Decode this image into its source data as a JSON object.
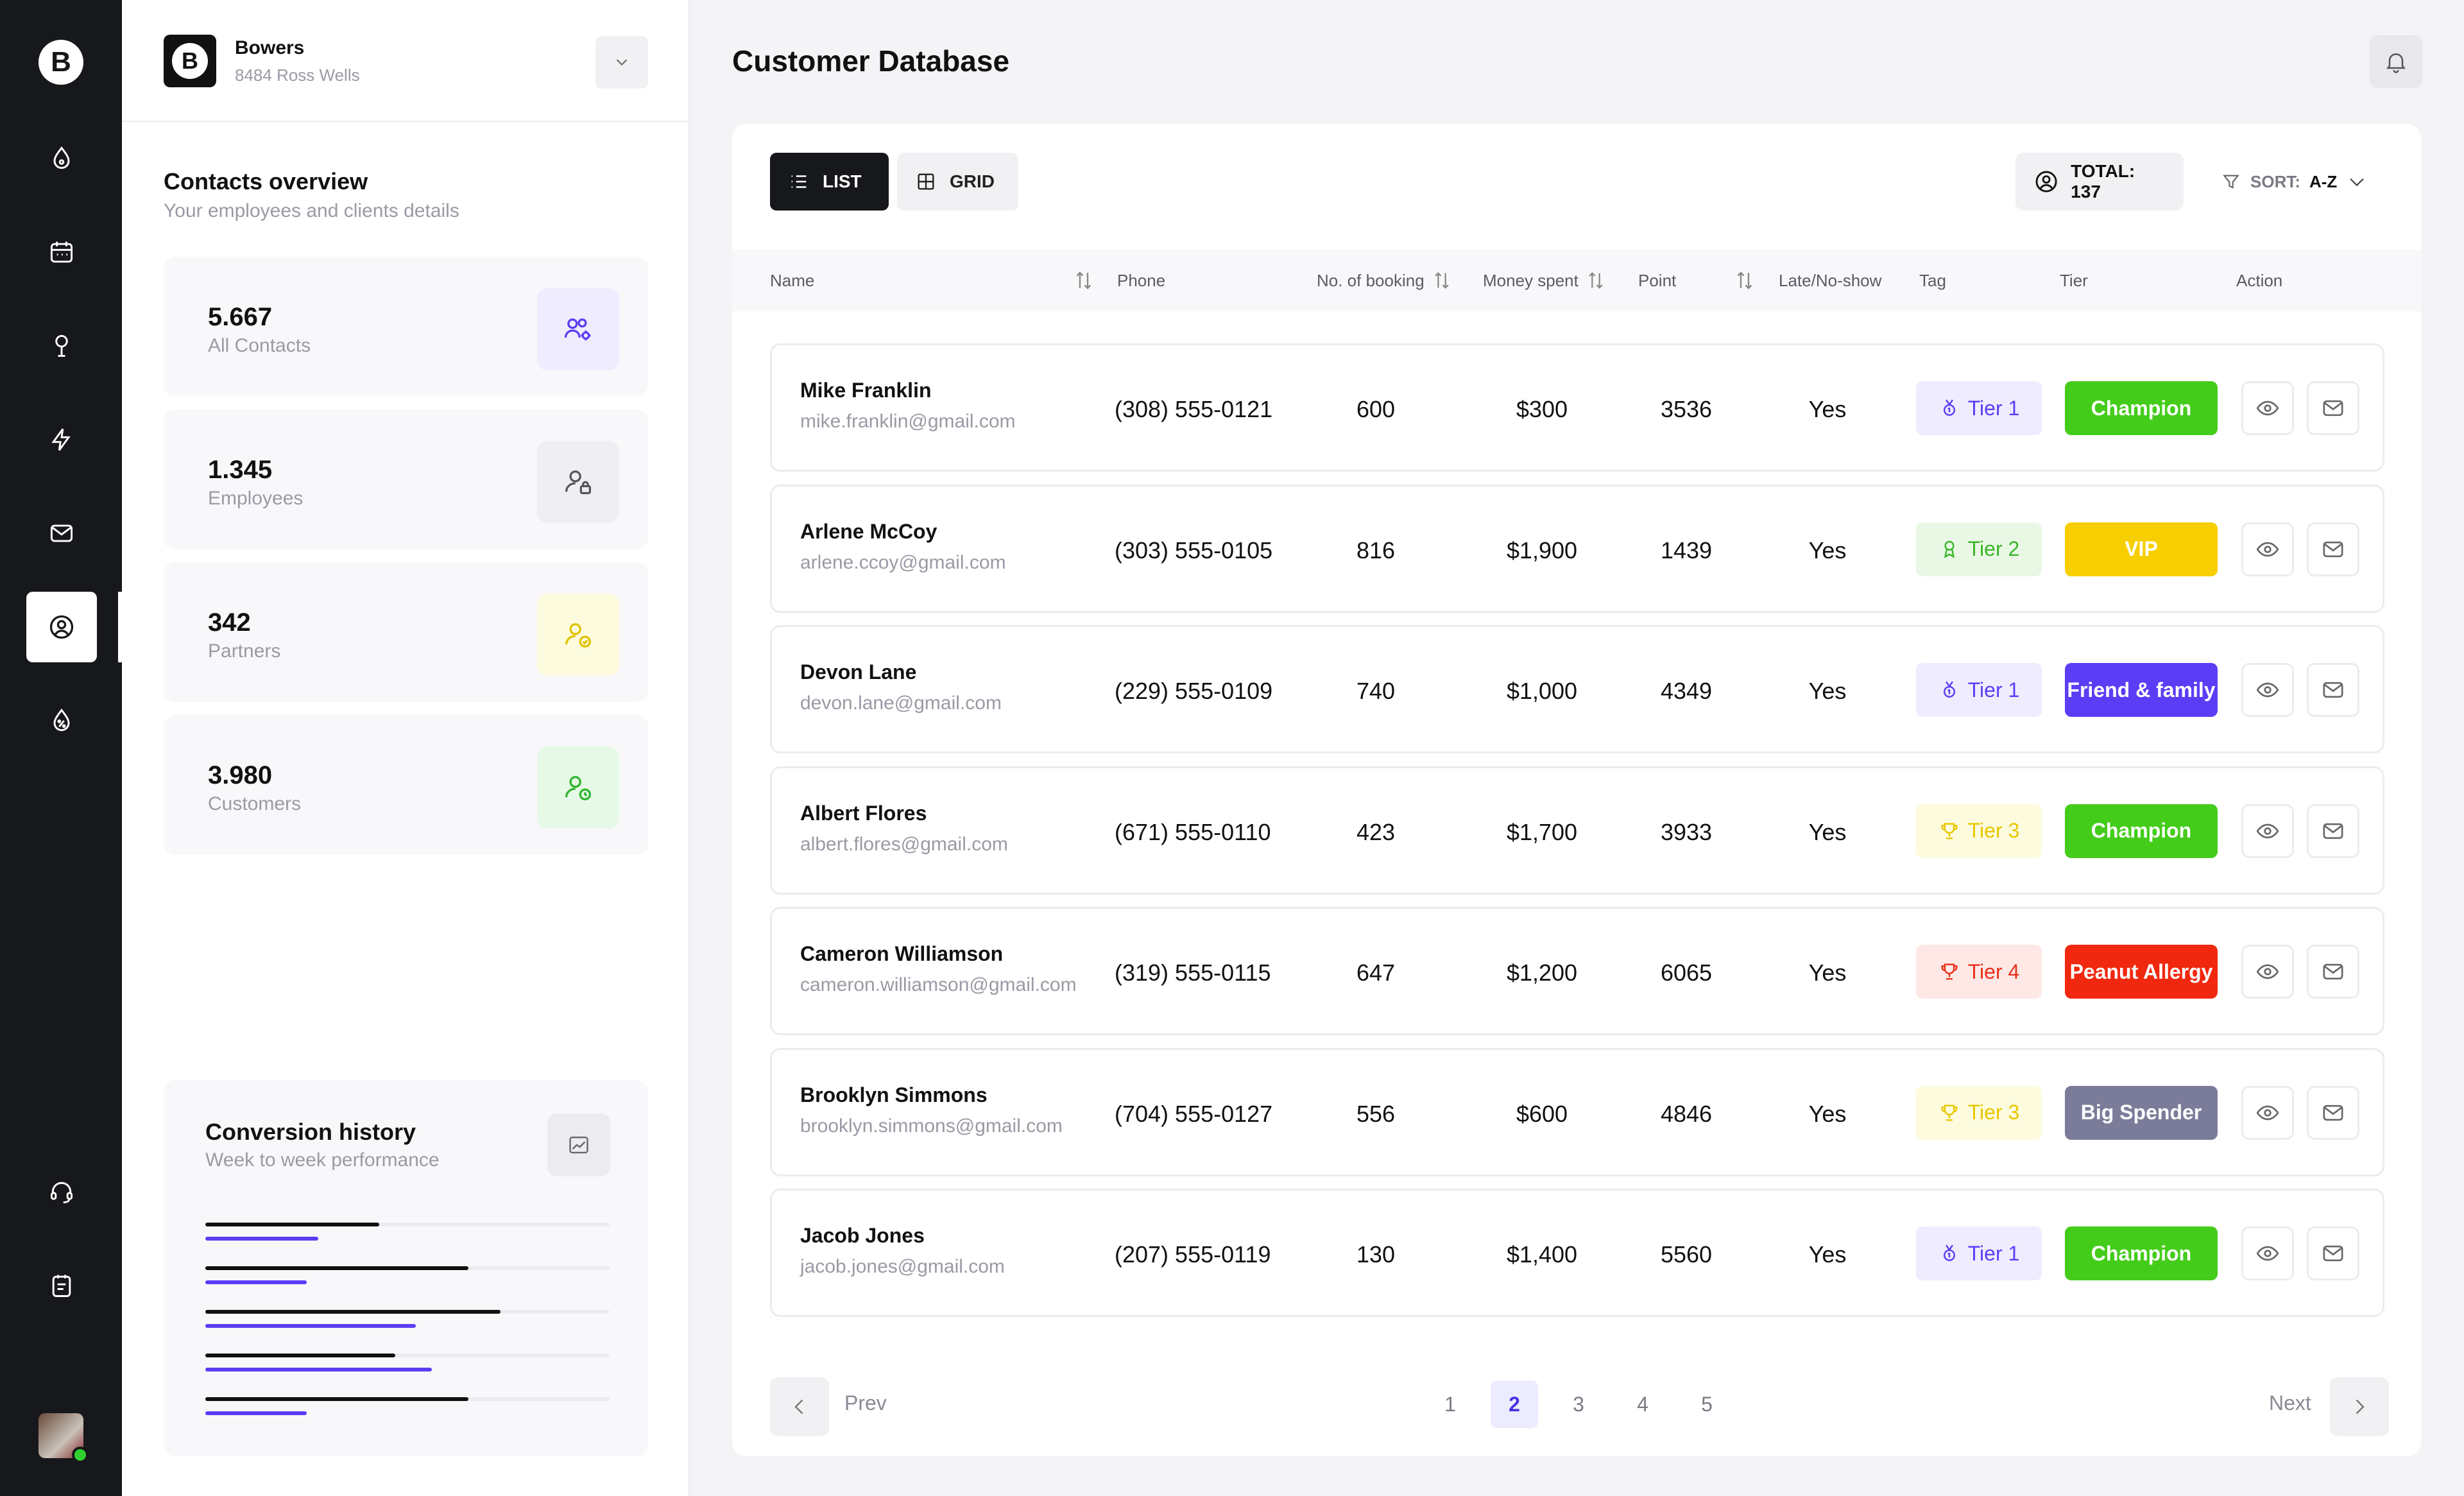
{
  "company": {
    "name": "Bowers",
    "address": "8484 Ross Wells",
    "logo_letter": "B"
  },
  "rail": {
    "logo_letter": "B",
    "items": [
      {
        "icon": "drop-icon"
      },
      {
        "icon": "calendar-icon"
      },
      {
        "icon": "location-pin-icon"
      },
      {
        "icon": "lightning-icon"
      },
      {
        "icon": "mail-icon"
      },
      {
        "icon": "user-circle-icon",
        "active": true
      },
      {
        "icon": "discount-icon"
      }
    ],
    "bottom_items": [
      {
        "icon": "headset-icon"
      },
      {
        "icon": "clipboard-icon"
      }
    ]
  },
  "overview": {
    "title": "Contacts overview",
    "subtitle": "Your employees and clients details",
    "stats": [
      {
        "value": "5.667",
        "label": "All Contacts",
        "icon": "users-settings-icon",
        "color": "#5b3df5",
        "bg": "#eeecfe"
      },
      {
        "value": "1.345",
        "label": "Employees",
        "icon": "user-lock-icon",
        "color": "#555560",
        "bg": "#efeff2"
      },
      {
        "value": "342",
        "label": "Partners",
        "icon": "user-check-icon",
        "color": "#e0c200",
        "bg": "#fdfbdd"
      },
      {
        "value": "3.980",
        "label": "Customers",
        "icon": "user-clock-icon",
        "color": "#2fb52f",
        "bg": "#e6f8e6"
      }
    ]
  },
  "conversion": {
    "title": "Conversion history",
    "subtitle": "Week to week performance",
    "icon": "chart-icon",
    "rows": [
      {
        "a": 0.43,
        "b": 0.28
      },
      {
        "a": 0.65,
        "b": 0.25
      },
      {
        "a": 0.73,
        "b": 0.52
      },
      {
        "a": 0.47,
        "b": 0.56
      },
      {
        "a": 0.65,
        "b": 0.25
      }
    ]
  },
  "page": {
    "title": "Customer Database"
  },
  "toolbar": {
    "list_label": "LIST",
    "grid_label": "GRID",
    "total_label": "TOTAL: 137",
    "sort_label": "SORT:",
    "sort_value": "A-Z"
  },
  "table": {
    "headers": {
      "name": "Name",
      "phone": "Phone",
      "bookings": "No. of booking",
      "money": "Money spent",
      "point": "Point",
      "late": "Late/No-show",
      "tag": "Tag",
      "tier": "Tier",
      "action": "Action"
    },
    "rows": [
      {
        "name": "Mike Franklin",
        "email": "mike.franklin@gmail.com",
        "phone": "(308) 555-0121",
        "bookings": "600",
        "money": "$300",
        "point": "3536",
        "late": "Yes",
        "tag": "Tier 1",
        "tag_color": "#5b3df5",
        "tag_bg": "#eeecfe",
        "tag_icon": "medal-icon",
        "tier": "Champion",
        "tier_color": "#44cc1a"
      },
      {
        "name": "Arlene McCoy",
        "email": "arlene.ccoy@gmail.com",
        "phone": "(303) 555-0105",
        "bookings": "816",
        "money": "$1,900",
        "point": "1439",
        "late": "Yes",
        "tag": "Tier 2",
        "tag_color": "#3bb52a",
        "tag_bg": "#e9f8e5",
        "tag_icon": "award-icon",
        "tier": "VIP",
        "tier_color": "#f7cf00"
      },
      {
        "name": "Devon Lane",
        "email": "devon.lane@gmail.com",
        "phone": "(229) 555-0109",
        "bookings": "740",
        "money": "$1,000",
        "point": "4349",
        "late": "Yes",
        "tag": "Tier 1",
        "tag_color": "#5b3df5",
        "tag_bg": "#eeecfe",
        "tag_icon": "medal-icon",
        "tier": "Friend & family",
        "tier_color": "#5b3df5"
      },
      {
        "name": "Albert Flores",
        "email": "albert.flores@gmail.com",
        "phone": "(671) 555-0110",
        "bookings": "423",
        "money": "$1,700",
        "point": "3933",
        "late": "Yes",
        "tag": "Tier 3",
        "tag_color": "#e8c700",
        "tag_bg": "#fdfbdd",
        "tag_icon": "trophy-icon",
        "tier": "Champion",
        "tier_color": "#44cc1a"
      },
      {
        "name": "Cameron Williamson",
        "email": "cameron.williamson@gmail.com",
        "phone": "(319) 555-0115",
        "bookings": "647",
        "money": "$1,200",
        "point": "6065",
        "late": "Yes",
        "tag": "Tier 4",
        "tag_color": "#e8311a",
        "tag_bg": "#fde8e5",
        "tag_icon": "trophy-icon",
        "tier": "Peanut Allergy",
        "tier_color": "#f0280f"
      },
      {
        "name": "Brooklyn Simmons",
        "email": "brooklyn.simmons@gmail.com",
        "phone": "(704) 555-0127",
        "bookings": "556",
        "money": "$600",
        "point": "4846",
        "late": "Yes",
        "tag": "Tier 3",
        "tag_color": "#e8c700",
        "tag_bg": "#fdfbdd",
        "tag_icon": "trophy-icon",
        "tier": "Big Spender",
        "tier_color": "#7b7b9a"
      },
      {
        "name": "Jacob Jones",
        "email": "jacob.jones@gmail.com",
        "phone": "(207) 555-0119",
        "bookings": "130",
        "money": "$1,400",
        "point": "5560",
        "late": "Yes",
        "tag": "Tier 1",
        "tag_color": "#5b3df5",
        "tag_bg": "#eeecfe",
        "tag_icon": "medal-icon",
        "tier": "Champion",
        "tier_color": "#44cc1a"
      }
    ]
  },
  "pagination": {
    "prev_label": "Prev",
    "next_label": "Next",
    "pages": [
      "1",
      "2",
      "3",
      "4",
      "5"
    ],
    "current": "2"
  }
}
